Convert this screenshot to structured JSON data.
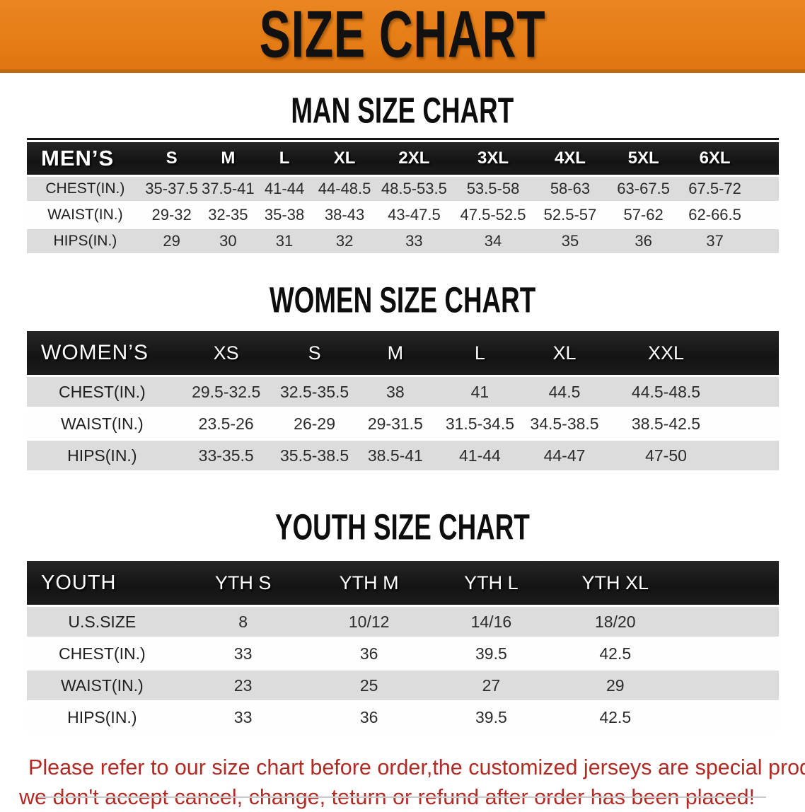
{
  "banner": {
    "title": "SIZE CHART"
  },
  "sections": {
    "men": {
      "title": "MAN SIZE CHART",
      "header": [
        "MEN’S",
        "S",
        "M",
        "L",
        "XL",
        "2XL",
        "3XL",
        "4XL",
        "5XL",
        "6XL"
      ],
      "rows": [
        [
          "CHEST(IN.)",
          "35-37.5",
          "37.5-41",
          "41-44",
          "44-48.5",
          "48.5-53.5",
          "53.5-58",
          "58-63",
          "63-67.5",
          "67.5-72"
        ],
        [
          "WAIST(IN.)",
          "29-32",
          "32-35",
          "35-38",
          "38-43",
          "43-47.5",
          "47.5-52.5",
          "52.5-57",
          "57-62",
          "62-66.5"
        ],
        [
          "HIPS(IN.)",
          "29",
          "30",
          "31",
          "32",
          "33",
          "34",
          "35",
          "36",
          "37"
        ]
      ]
    },
    "women": {
      "title": "WOMEN SIZE CHART",
      "header": [
        "WOMEN’S",
        "XS",
        "S",
        "M",
        "L",
        "XL",
        "XXL"
      ],
      "rows": [
        [
          "CHEST(IN.)",
          "29.5-32.5",
          "32.5-35.5",
          "38",
          "41",
          "44.5",
          "44.5-48.5"
        ],
        [
          "WAIST(IN.)",
          "23.5-26",
          "26-29",
          "29-31.5",
          "31.5-34.5",
          "34.5-38.5",
          "38.5-42.5"
        ],
        [
          "HIPS(IN.)",
          "33-35.5",
          "35.5-38.5",
          "38.5-41",
          "41-44",
          "44-47",
          "47-50"
        ]
      ]
    },
    "youth": {
      "title": "YOUTH SIZE CHART",
      "header": [
        "YOUTH",
        "YTH S",
        "YTH M",
        "YTH L",
        "YTH XL"
      ],
      "rows": [
        [
          "U.S.SIZE",
          "8",
          "10/12",
          "14/16",
          "18/20"
        ],
        [
          "CHEST(IN.)",
          "33",
          "36",
          "39.5",
          "42.5"
        ],
        [
          "WAIST(IN.)",
          "23",
          "25",
          "27",
          "29"
        ],
        [
          "HIPS(IN.)",
          "33",
          "36",
          "39.5",
          "42.5"
        ]
      ]
    }
  },
  "footer": {
    "line1": "Please refer to our size chart before order,the customized jerseys are special products,",
    "line2": "we don't accept cancel, change, teturn or refund after order has been placed!"
  },
  "colors": {
    "banner_orange": "#E67E17",
    "banner_border": "#C1670D",
    "header_black": "#181818",
    "row_gray": "#DCDCDC",
    "row_white": "#FEFEFE",
    "accent_red": "#B12A23"
  }
}
